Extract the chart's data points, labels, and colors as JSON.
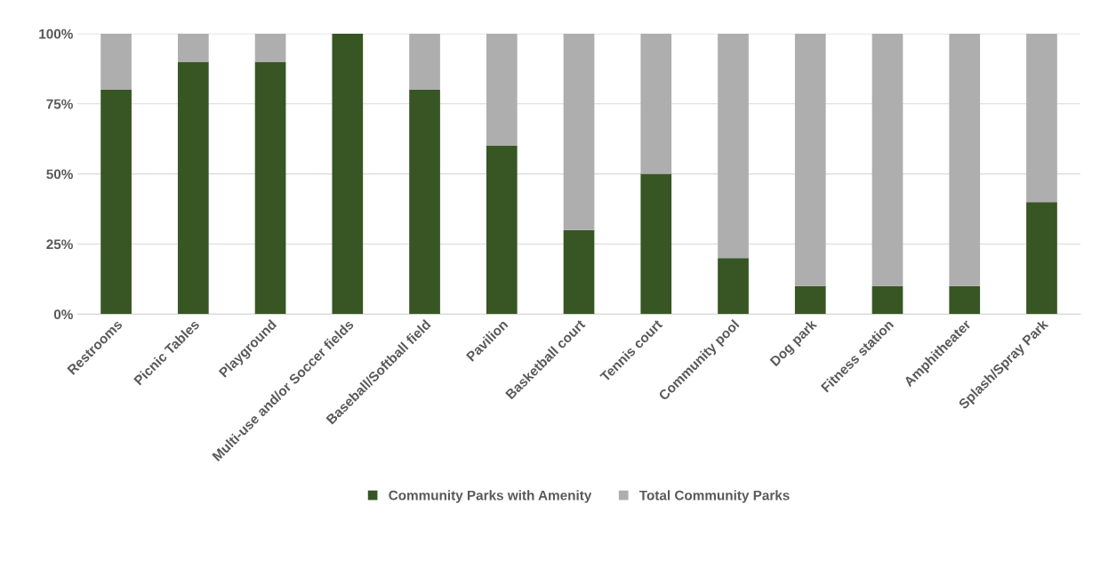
{
  "chart_data": {
    "type": "bar",
    "stacked": true,
    "categories": [
      "Restrooms",
      "Picnic Tables",
      "Playground",
      "Multi-use and/or Soccer fields",
      "Baseball/Softball field",
      "Pavilion",
      "Basketball court",
      "Tennis court",
      "Community pool",
      "Dog park",
      "Fitness station",
      "Amphitheater",
      "Splash/Spray Park"
    ],
    "series": [
      {
        "name": "Community Parks with Amenity",
        "color": "#375623",
        "values": [
          80,
          90,
          90,
          100,
          80,
          60,
          30,
          50,
          20,
          10,
          10,
          10,
          40
        ]
      },
      {
        "name": "Total Community Parks",
        "color": "#aeaeae",
        "values": [
          20,
          10,
          10,
          0,
          20,
          40,
          70,
          50,
          80,
          90,
          90,
          90,
          60
        ]
      }
    ],
    "ylim": [
      0,
      100
    ],
    "yticks": [
      {
        "value": 0,
        "label": "0%"
      },
      {
        "value": 25,
        "label": "25%"
      },
      {
        "value": 50,
        "label": "50%"
      },
      {
        "value": 75,
        "label": "75%"
      },
      {
        "value": 100,
        "label": "100%"
      }
    ],
    "grid": "y",
    "legend": "bottom"
  }
}
